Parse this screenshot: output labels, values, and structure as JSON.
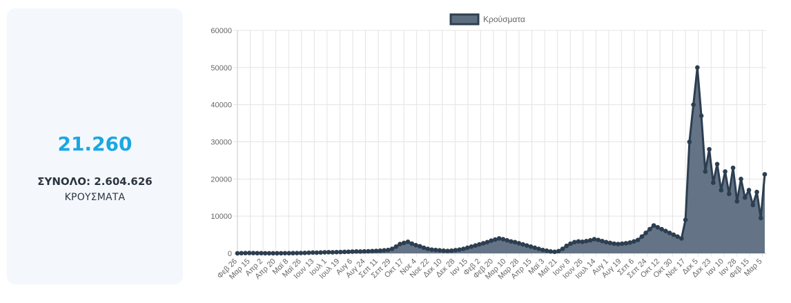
{
  "summary": {
    "today_value": "21.260",
    "total_label": "ΣΥΝΟΛΟ: 2.604.626",
    "unit_label": "ΚΡΟΥΣΜΑΤΑ"
  },
  "colors": {
    "series_line": "#2c3e50",
    "series_fill": "#5c6d7f",
    "accent": "#1aa7e2",
    "grid": "#e3e3e3"
  },
  "chart_data": {
    "type": "area",
    "title": "",
    "xlabel": "",
    "ylabel": "",
    "ylim": [
      0,
      60000
    ],
    "yticks": [
      0,
      10000,
      20000,
      30000,
      40000,
      50000,
      60000
    ],
    "grid": true,
    "legend_position": "top",
    "xtick_labels": [
      "Φεβ 26",
      "Μαρ 15",
      "Απρ 2",
      "Απρ 20",
      "Μαϊ 8",
      "Μαϊ 26",
      "Ιουν 13",
      "Ιουλ 1",
      "Ιουλ 19",
      "Αυγ 6",
      "Αυγ 24",
      "Σεπ 11",
      "Σεπ 29",
      "Οκτ 17",
      "Νοε 4",
      "Νοε 22",
      "Δεκ 10",
      "Δεκ 28",
      "Ιαν 15",
      "Φεβ 2",
      "Φεβ 20",
      "Μαρ 10",
      "Μαρ 28",
      "Απρ 15",
      "Μαϊ 3",
      "Μαϊ 21",
      "Ιουν 8",
      "Ιουν 26",
      "Ιουλ 14",
      "Αυγ 1",
      "Αυγ 19",
      "Σεπ 6",
      "Σεπ 24",
      "Οκτ 12",
      "Οκτ 30",
      "Νοε 17",
      "Δεκ 5",
      "Δεκ 23",
      "Ιαν 10",
      "Ιαν 28",
      "Φεβ 15",
      "Μαρ 5"
    ],
    "series": [
      {
        "name": "Κρούσματα",
        "values": [
          0,
          40,
          60,
          80,
          60,
          40,
          30,
          20,
          15,
          10,
          15,
          20,
          30,
          40,
          50,
          60,
          80,
          100,
          150,
          200,
          180,
          220,
          260,
          300,
          280,
          320,
          350,
          380,
          420,
          460,
          500,
          480,
          520,
          560,
          600,
          650,
          700,
          800,
          900,
          1200,
          1800,
          2500,
          2800,
          3100,
          2600,
          2200,
          1900,
          1500,
          1200,
          1000,
          900,
          800,
          700,
          650,
          700,
          850,
          1000,
          1200,
          1500,
          1800,
          2100,
          2400,
          2700,
          3000,
          3400,
          3700,
          4000,
          3800,
          3500,
          3200,
          3000,
          2700,
          2400,
          2100,
          1800,
          1500,
          1200,
          900,
          700,
          500,
          400,
          600,
          1200,
          2000,
          2600,
          3000,
          3200,
          3100,
          3300,
          3500,
          3800,
          3600,
          3300,
          3000,
          2800,
          2600,
          2500,
          2600,
          2700,
          2900,
          3200,
          3600,
          4500,
          5500,
          6500,
          7500,
          7000,
          6500,
          6000,
          5500,
          5000,
          4500,
          4000,
          9000,
          30000,
          40000,
          50000,
          37000,
          22000,
          28000,
          19000,
          24000,
          17000,
          22000,
          16000,
          23000,
          14000,
          20000,
          15000,
          17000,
          13000,
          16500,
          9500,
          21260
        ]
      }
    ]
  }
}
